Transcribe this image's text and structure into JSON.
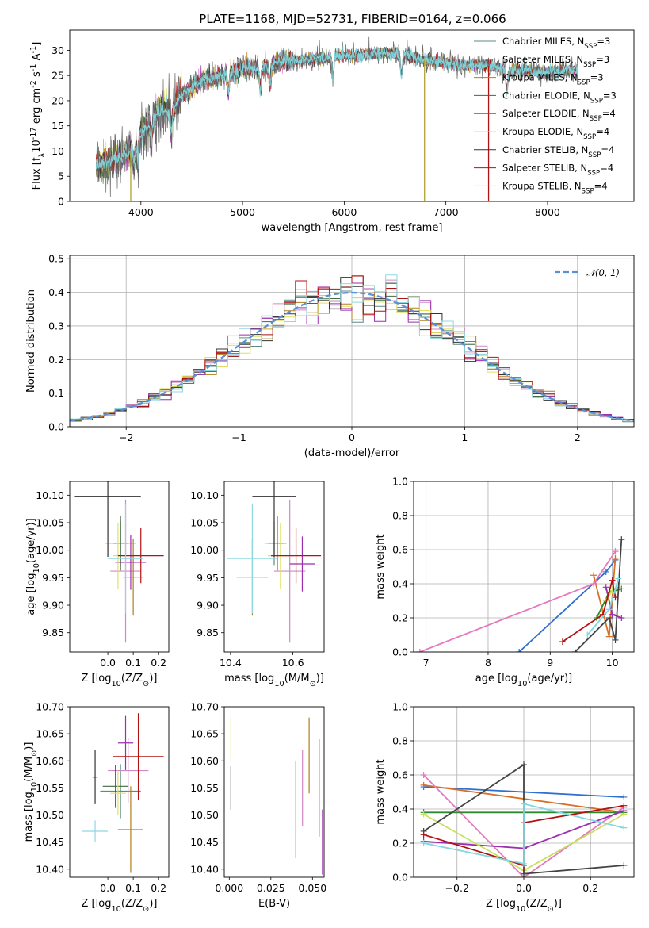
{
  "title": "PLATE=1168, MJD=52731, FIBERID=0164, z=0.066",
  "models": [
    {
      "name": "Chabrier MILES",
      "nssp": "3",
      "color": "#5b8b85"
    },
    {
      "name": "Salpeter MILES",
      "nssp": "3",
      "color": "#d089c4"
    },
    {
      "name": "Kroupa MILES",
      "nssp": "3",
      "color": "#b07f1c"
    },
    {
      "name": "Chabrier ELODIE",
      "nssp": "3",
      "color": "#3e6b3e"
    },
    {
      "name": "Salpeter ELODIE",
      "nssp": "4",
      "color": "#9b2fae"
    },
    {
      "name": "Kroupa ELODIE",
      "nssp": "4",
      "color": "#e0e060"
    },
    {
      "name": "Chabrier STELIB",
      "nssp": "4",
      "color": "#333333"
    },
    {
      "name": "Salpeter STELIB",
      "nssp": "4",
      "color": "#b31212"
    },
    {
      "name": "Kroupa STELIB",
      "nssp": "4",
      "color": "#8fd8e0"
    }
  ],
  "chart_data": [
    {
      "type": "line",
      "id": "spectrum",
      "xlabel": "wavelength [Angstrom, rest frame]",
      "ylabel": "Flux [f$_\\lambda$10$^{-17}$ erg cm$^{-2}$ s$^{-1}$ A$^{-1}$]",
      "xlim": [
        3300,
        8850
      ],
      "ylim": [
        0,
        34
      ],
      "xticks": [
        4000,
        5000,
        6000,
        7000,
        8000
      ],
      "yticks": [
        0,
        5,
        10,
        15,
        20,
        25,
        30
      ],
      "continuum": [
        [
          3560,
          7
        ],
        [
          3700,
          8
        ],
        [
          3800,
          9
        ],
        [
          3900,
          10
        ],
        [
          4000,
          13
        ],
        [
          4100,
          16
        ],
        [
          4200,
          18
        ],
        [
          4300,
          18
        ],
        [
          4400,
          21
        ],
        [
          4600,
          24
        ],
        [
          4800,
          25
        ],
        [
          5000,
          26.5
        ],
        [
          5200,
          26.5
        ],
        [
          5400,
          28
        ],
        [
          5600,
          28
        ],
        [
          5800,
          28.5
        ],
        [
          6000,
          29
        ],
        [
          6200,
          29
        ],
        [
          6400,
          29.5
        ],
        [
          6600,
          29
        ],
        [
          6800,
          28
        ],
        [
          7000,
          27.5
        ],
        [
          7200,
          27
        ],
        [
          7400,
          27
        ],
        [
          7600,
          26
        ],
        [
          7800,
          26
        ],
        [
          8000,
          25.5
        ],
        [
          8200,
          26
        ],
        [
          8300,
          26
        ]
      ],
      "absorption_lines": [
        3933,
        3968,
        4102,
        4300,
        4861,
        5175,
        5270,
        5890,
        6563,
        7600
      ],
      "grid": false,
      "legend": "upper right"
    },
    {
      "type": "histogram",
      "id": "residuals",
      "xlabel": "(data-model)/error",
      "ylabel": "Normed distribution",
      "xlim": [
        -2.5,
        2.5
      ],
      "ylim": [
        0,
        0.51
      ],
      "xticks": [
        -2,
        -1,
        0,
        1,
        2
      ],
      "yticks": [
        0.0,
        0.1,
        0.2,
        0.3,
        0.4,
        0.5
      ],
      "bin_width": 0.1,
      "normal_curve": "N(0,1)",
      "grid": true,
      "legend": "upper right"
    },
    {
      "type": "scatter",
      "id": "age_vs_Z",
      "xlabel": "Z [log$_{10}$(Z/Z$_\\odot$)]",
      "ylabel": "age  [log$_{10}$(age/yr)]",
      "xlim": [
        -0.15,
        0.24
      ],
      "ylim": [
        9.815,
        10.125
      ],
      "xticks": [
        0.0,
        0.1,
        0.2
      ],
      "yticks": [
        9.85,
        9.9,
        9.95,
        10.0,
        10.05,
        10.1
      ],
      "points": [
        {
          "x": 0.05,
          "y": 10.013,
          "xerr": 0.06,
          "yerr": 0.04
        },
        {
          "x": 0.07,
          "y": 9.962,
          "xerr": 0.06,
          "yerr": 0.13
        },
        {
          "x": 0.1,
          "y": 9.951,
          "xerr": 0.04,
          "yerr": 0.07
        },
        {
          "x": 0.05,
          "y": 10.013,
          "xerr": 0.03,
          "yerr": 0.05
        },
        {
          "x": 0.09,
          "y": 9.978,
          "xerr": 0.06,
          "yerr": 0.05
        },
        {
          "x": 0.04,
          "y": 9.99,
          "xerr": 0.02,
          "yerr": 0.06
        },
        {
          "x": 0.0,
          "y": 10.098,
          "xerr": 0.13,
          "yerr": 0.11
        },
        {
          "x": 0.13,
          "y": 9.99,
          "xerr": 0.09,
          "yerr": 0.05
        },
        {
          "x": 0.07,
          "y": 9.985,
          "xerr": 0.07,
          "yerr": 0.1
        }
      ]
    },
    {
      "type": "scatter",
      "id": "age_vs_mass",
      "xlabel": "mass [log$_{10}$(M/M$_\\odot$)]",
      "xlim": [
        10.38,
        10.7
      ],
      "ylim": [
        9.815,
        10.125
      ],
      "xticks": [
        10.4,
        10.6
      ],
      "yticks": [
        9.85,
        9.9,
        9.95,
        10.0,
        10.05,
        10.1
      ],
      "points": [
        {
          "x": 10.54,
          "y": 10.013,
          "xerr": 0.03,
          "yerr": 0.04
        },
        {
          "x": 10.59,
          "y": 9.962,
          "xerr": 0.05,
          "yerr": 0.13
        },
        {
          "x": 10.47,
          "y": 9.951,
          "xerr": 0.05,
          "yerr": 0.07
        },
        {
          "x": 10.55,
          "y": 10.013,
          "xerr": 0.03,
          "yerr": 0.05
        },
        {
          "x": 10.63,
          "y": 9.975,
          "xerr": 0.04,
          "yerr": 0.05
        },
        {
          "x": 10.56,
          "y": 9.99,
          "xerr": 0.04,
          "yerr": 0.06
        },
        {
          "x": 10.54,
          "y": 10.098,
          "xerr": 0.07,
          "yerr": 0.11
        },
        {
          "x": 10.61,
          "y": 9.99,
          "xerr": 0.08,
          "yerr": 0.05
        },
        {
          "x": 10.47,
          "y": 9.985,
          "xerr": 0.08,
          "yerr": 0.1
        }
      ]
    },
    {
      "type": "line",
      "id": "weight_vs_age",
      "xlabel": "age  [log$_{10}$(age/yr)]",
      "ylabel": "mass weight",
      "xlim": [
        6.8,
        10.35
      ],
      "ylim": [
        0,
        1
      ],
      "xticks": [
        7,
        8,
        9,
        10
      ],
      "yticks": [
        0.0,
        0.2,
        0.4,
        0.6,
        0.8,
        1.0
      ],
      "grid": true,
      "series": [
        {
          "color": "#2f6fd0",
          "points": [
            [
              8.5,
              0.0
            ],
            [
              9.9,
              0.47
            ],
            [
              10.05,
              0.54
            ]
          ]
        },
        {
          "color": "#d67028",
          "points": [
            [
              9.7,
              0.45
            ],
            [
              9.95,
              0.09
            ],
            [
              10.05,
              0.55
            ]
          ]
        },
        {
          "color": "#e679bd",
          "points": [
            [
              6.9,
              0.0
            ],
            [
              9.7,
              0.4
            ],
            [
              10.05,
              0.59
            ]
          ]
        },
        {
          "color": "#2f8a2f",
          "points": [
            [
              9.75,
              0.2
            ],
            [
              9.95,
              0.35
            ],
            [
              10.15,
              0.37
            ]
          ]
        },
        {
          "color": "#9b2fae",
          "points": [
            [
              9.9,
              0.38
            ],
            [
              10.0,
              0.22
            ],
            [
              10.15,
              0.2
            ]
          ]
        },
        {
          "color": "#c8e060",
          "points": [
            [
              9.9,
              0.3
            ],
            [
              10.0,
              0.36
            ],
            [
              10.1,
              0.38
            ]
          ]
        },
        {
          "color": "#444444",
          "points": [
            [
              9.4,
              0.0
            ],
            [
              9.95,
              0.2
            ],
            [
              10.05,
              0.07
            ],
            [
              10.15,
              0.66
            ]
          ]
        },
        {
          "color": "#b31212",
          "points": [
            [
              9.2,
              0.06
            ],
            [
              9.85,
              0.22
            ],
            [
              10.0,
              0.42
            ],
            [
              10.05,
              0.32
            ]
          ]
        },
        {
          "color": "#80d8e0",
          "points": [
            [
              9.6,
              0.1
            ],
            [
              9.95,
              0.25
            ],
            [
              10.1,
              0.43
            ]
          ]
        }
      ]
    },
    {
      "type": "scatter",
      "id": "mass_vs_Z",
      "xlabel": "Z [log$_{10}$(Z/Z$_\\odot$)]",
      "ylabel": "mass [log$_{10}$(M/M$_\\odot$)]",
      "xlim": [
        -0.15,
        0.24
      ],
      "ylim": [
        10.385,
        10.7
      ],
      "xticks": [
        0.0,
        0.1,
        0.2
      ],
      "yticks": [
        10.4,
        10.45,
        10.5,
        10.55,
        10.6,
        10.65,
        10.7
      ],
      "points": [
        {
          "x": 0.05,
          "y": 10.544,
          "xerr": 0.08,
          "yerr": 0.05
        },
        {
          "x": 0.08,
          "y": 10.582,
          "xerr": 0.08,
          "yerr": 0.06
        },
        {
          "x": 0.09,
          "y": 10.473,
          "xerr": 0.05,
          "yerr": 0.08
        },
        {
          "x": 0.03,
          "y": 10.553,
          "xerr": 0.05,
          "yerr": 0.04
        },
        {
          "x": 0.07,
          "y": 10.633,
          "xerr": 0.03,
          "yerr": 0.05
        },
        {
          "x": 0.04,
          "y": 10.54,
          "xerr": 0.03,
          "yerr": 0.04
        },
        {
          "x": -0.05,
          "y": 10.57,
          "xerr": 0.01,
          "yerr": 0.05
        },
        {
          "x": 0.12,
          "y": 10.608,
          "xerr": 0.1,
          "yerr": 0.08
        },
        {
          "x": -0.05,
          "y": 10.47,
          "xerr": 0.05,
          "yerr": 0.02
        }
      ]
    },
    {
      "type": "scatter",
      "id": "mass_vs_ebv",
      "xlabel": "E(B-V)",
      "xlim": [
        -0.003,
        0.057
      ],
      "ylim": [
        10.385,
        10.7
      ],
      "xticks": [
        0.0,
        0.025,
        0.05
      ],
      "yticks": [
        10.4,
        10.45,
        10.5,
        10.55,
        10.6,
        10.65,
        10.7
      ],
      "points": [
        {
          "x": 0.04,
          "y": 10.51,
          "yerr": 0.09
        },
        {
          "x": 0.044,
          "y": 10.55,
          "yerr": 0.07
        },
        {
          "x": 0.048,
          "y": 10.61,
          "yerr": 0.07
        },
        {
          "x": 0.054,
          "y": 10.55,
          "yerr": 0.09
        },
        {
          "x": 0.056,
          "y": 10.45,
          "yerr": 0.06
        },
        {
          "x": 0.001,
          "y": 10.64,
          "yerr": 0.04
        },
        {
          "x": 0.001,
          "y": 10.55,
          "yerr": 0.04
        }
      ]
    },
    {
      "type": "line",
      "id": "weight_vs_Z",
      "xlabel": "Z [log$_{10}$(Z/Z$_\\odot$)]",
      "ylabel": "mass weight",
      "xlim": [
        -0.33,
        0.33
      ],
      "ylim": [
        0,
        1
      ],
      "xticks": [
        -0.2,
        0.0,
        0.2
      ],
      "yticks": [
        0.0,
        0.2,
        0.4,
        0.6,
        0.8,
        1.0
      ],
      "grid": true,
      "series": [
        {
          "color": "#2f6fd0",
          "points": [
            [
              -0.3,
              0.53
            ],
            [
              0.3,
              0.47
            ]
          ]
        },
        {
          "color": "#d67028",
          "points": [
            [
              -0.3,
              0.54
            ],
            [
              0.3,
              0.38
            ]
          ]
        },
        {
          "color": "#e679bd",
          "points": [
            [
              -0.3,
              0.6
            ],
            [
              0.0,
              0.0
            ],
            [
              0.3,
              0.41
            ]
          ]
        },
        {
          "color": "#2f8a2f",
          "points": [
            [
              -0.3,
              0.38
            ],
            [
              0.3,
              0.38
            ]
          ]
        },
        {
          "color": "#9b2fae",
          "points": [
            [
              -0.3,
              0.21
            ],
            [
              0.0,
              0.17
            ],
            [
              0.3,
              0.39
            ]
          ]
        },
        {
          "color": "#c8e060",
          "points": [
            [
              -0.3,
              0.37
            ],
            [
              0.0,
              0.04
            ],
            [
              0.3,
              0.37
            ]
          ]
        },
        {
          "color": "#444444",
          "points": [
            [
              -0.3,
              0.27
            ],
            [
              0.0,
              0.66
            ],
            [
              0.0,
              0.02
            ],
            [
              0.3,
              0.07
            ]
          ]
        },
        {
          "color": "#b31212",
          "points": [
            [
              -0.3,
              0.25
            ],
            [
              0.0,
              0.07
            ],
            [
              0.0,
              0.32
            ],
            [
              0.3,
              0.42
            ]
          ]
        },
        {
          "color": "#80d8e0",
          "points": [
            [
              -0.3,
              0.2
            ],
            [
              0.0,
              0.08
            ],
            [
              0.0,
              0.43
            ],
            [
              0.3,
              0.29
            ]
          ]
        }
      ]
    }
  ]
}
